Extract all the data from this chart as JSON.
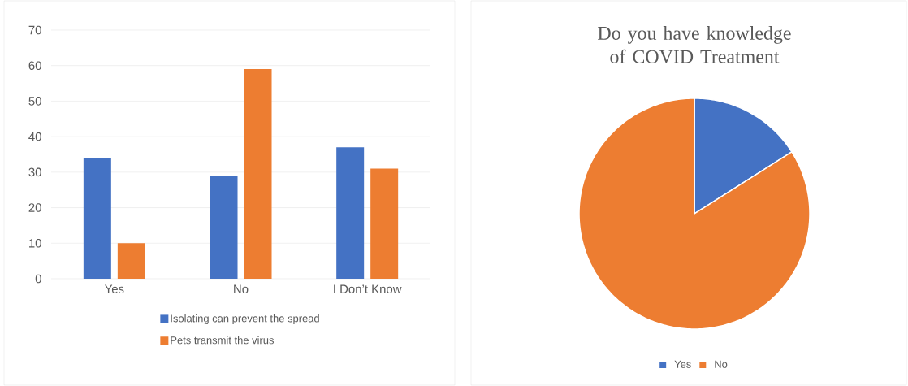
{
  "chart_data": [
    {
      "type": "bar",
      "categories": [
        "Yes",
        "No",
        "I Don’t Know"
      ],
      "series": [
        {
          "name": "Isolating can prevent the spread",
          "color": "#4472c4",
          "values": [
            34,
            29,
            37
          ]
        },
        {
          "name": "Pets transmit the virus",
          "color": "#ed7d31",
          "values": [
            10,
            59,
            31
          ]
        }
      ],
      "ylim": [
        0,
        70
      ],
      "yticks": [
        0,
        10,
        20,
        30,
        40,
        50,
        60,
        70
      ],
      "grid": "y",
      "legend": "bottom"
    },
    {
      "type": "pie",
      "title": "Do you have knowledge of COVID Treatment",
      "categories": [
        "Yes",
        "No"
      ],
      "values": [
        16,
        84
      ],
      "colors": [
        "#4472c4",
        "#ed7d31"
      ],
      "legend": "bottom"
    }
  ]
}
